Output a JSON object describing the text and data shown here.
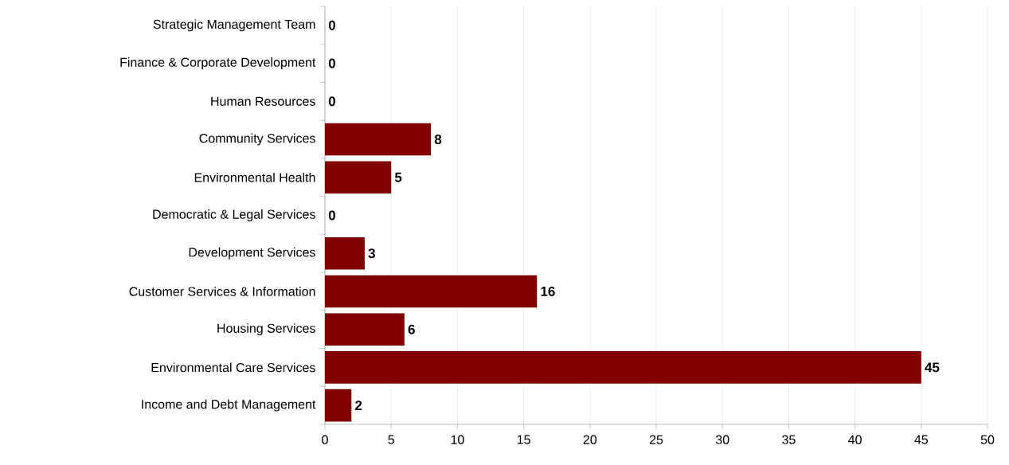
{
  "chart_data": {
    "type": "bar",
    "orientation": "horizontal",
    "categories": [
      "Strategic Management Team",
      "Finance & Corporate Development",
      "Human Resources",
      "Community Services",
      "Environmental Health",
      "Democratic & Legal Services",
      "Development Services",
      "Customer Services & Information",
      "Housing Services",
      "Environmental Care Services",
      "Income and Debt Management"
    ],
    "values": [
      0,
      0,
      0,
      8,
      5,
      0,
      3,
      16,
      6,
      45,
      2
    ],
    "color": "#800000",
    "xlim": [
      0,
      50
    ],
    "xticks": [
      0,
      5,
      10,
      15,
      20,
      25,
      30,
      35,
      40,
      45,
      50
    ],
    "grid": "x",
    "data_labels": true
  }
}
